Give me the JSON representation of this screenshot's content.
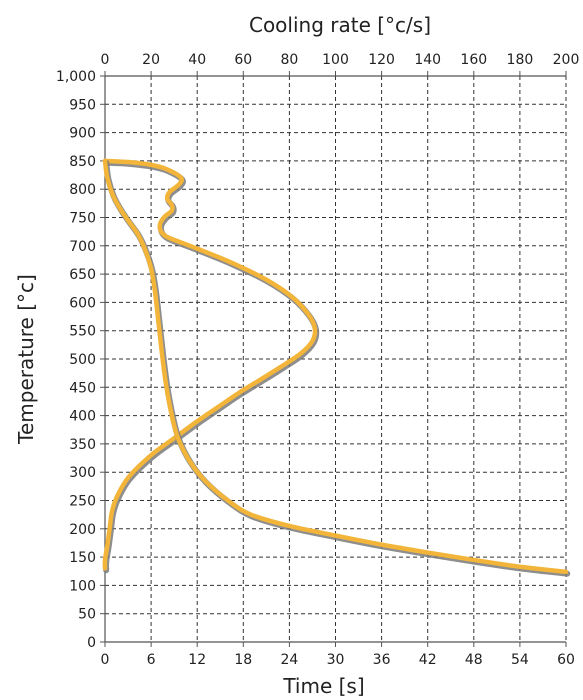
{
  "chart_data": {
    "type": "line",
    "ylabel": "Temperature [°c]",
    "xlabel_bottom": "Time [s]",
    "xlabel_top": "Cooling rate  [°c/s]",
    "y_range": [
      0,
      1000
    ],
    "x_bottom_range": [
      0,
      60
    ],
    "x_top_range": [
      0,
      200
    ],
    "y_ticks": [
      "0",
      "50",
      "100",
      "150",
      "200",
      "250",
      "300",
      "350",
      "400",
      "450",
      "500",
      "550",
      "600",
      "650",
      "700",
      "750",
      "800",
      "850",
      "900",
      "950",
      "1,000"
    ],
    "x_bottom_ticks": [
      "0",
      "6",
      "12",
      "18",
      "24",
      "30",
      "36",
      "42",
      "48",
      "54",
      "60"
    ],
    "x_top_ticks": [
      "0",
      "20",
      "40",
      "60",
      "80",
      "100",
      "120",
      "140",
      "160",
      "180",
      "200"
    ],
    "grid": true,
    "colors": {
      "curve": "#f2b53a",
      "shadow": "#7a7a7a",
      "grid": "#333333"
    },
    "series": [
      {
        "axis": "top",
        "points": [
          [
            0,
            850
          ],
          [
            10,
            848
          ],
          [
            20,
            843
          ],
          [
            27,
            835
          ],
          [
            33,
            820
          ],
          [
            32,
            808
          ],
          [
            28,
            795
          ],
          [
            27,
            783
          ],
          [
            29,
            772
          ],
          [
            29,
            762
          ],
          [
            26,
            752
          ],
          [
            24,
            740
          ],
          [
            24,
            728
          ],
          [
            26,
            718
          ],
          [
            29,
            712
          ],
          [
            40,
            695
          ],
          [
            55,
            670
          ],
          [
            70,
            640
          ],
          [
            81,
            610
          ],
          [
            88,
            580
          ],
          [
            91,
            555
          ],
          [
            90,
            532
          ],
          [
            85,
            510
          ],
          [
            77,
            488
          ],
          [
            68,
            465
          ],
          [
            58,
            440
          ],
          [
            49,
            415
          ],
          [
            40,
            390
          ],
          [
            30,
            360
          ],
          [
            20,
            330
          ],
          [
            10,
            290
          ],
          [
            5,
            255
          ],
          [
            3,
            230
          ],
          [
            2,
            200
          ],
          [
            1,
            170
          ],
          [
            0,
            145
          ],
          [
            0,
            130
          ]
        ]
      },
      {
        "axis": "bottom",
        "points": [
          [
            0,
            850
          ],
          [
            0.3,
            820
          ],
          [
            1,
            790
          ],
          [
            2,
            765
          ],
          [
            3,
            745
          ],
          [
            4.3,
            720
          ],
          [
            5.3,
            690
          ],
          [
            6,
            660
          ],
          [
            6.5,
            620
          ],
          [
            7,
            560
          ],
          [
            7.5,
            500
          ],
          [
            8,
            450
          ],
          [
            8.7,
            400
          ],
          [
            9.5,
            360
          ],
          [
            11,
            320
          ],
          [
            13,
            285
          ],
          [
            16,
            250
          ],
          [
            19,
            225
          ],
          [
            24,
            205
          ],
          [
            30,
            188
          ],
          [
            36,
            172
          ],
          [
            42,
            158
          ],
          [
            48,
            145
          ],
          [
            54,
            133
          ],
          [
            60,
            124
          ]
        ]
      }
    ]
  }
}
